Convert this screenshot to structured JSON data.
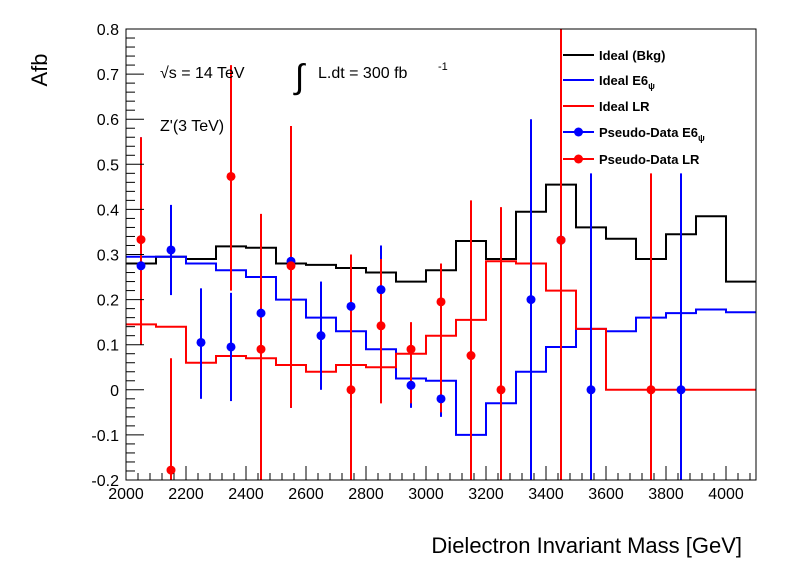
{
  "chart_data": {
    "type": "line",
    "xlabel": "Dielectron Invariant Mass [GeV]",
    "ylabel": "Afb",
    "xlim": [
      2000,
      4100
    ],
    "ylim": [
      -0.2,
      0.8
    ],
    "x_ticks": [
      2000,
      2200,
      2400,
      2600,
      2800,
      3000,
      3200,
      3400,
      3600,
      3800,
      4000
    ],
    "x_tick_labels": [
      "2000",
      "2200",
      "2400",
      "2600",
      "2800",
      "3000",
      "3200",
      "3400",
      "3600",
      "3800",
      "4000"
    ],
    "y_ticks": [
      -0.2,
      -0.1,
      0,
      0.1,
      0.2,
      0.3,
      0.4,
      0.5,
      0.6,
      0.7,
      0.8
    ],
    "y_tick_labels": [
      "-0.2",
      "-0.1",
      "0",
      "0.1",
      "0.2",
      "0.3",
      "0.4",
      "0.5",
      "0.6",
      "0.7",
      "0.8"
    ],
    "annotations": {
      "sqrt_s": "√s = 14 TeV",
      "lumi_integral": "∫",
      "lumi_text": "L.dt = 300 fb",
      "lumi_exp": "-1",
      "model": "Z'(3 TeV)"
    },
    "legend_position": "top-right",
    "legend": [
      {
        "label": "Ideal (Bkg)",
        "sub": "",
        "style": "line",
        "color": "#000000"
      },
      {
        "label": "Ideal E6",
        "sub": "ψ",
        "style": "line",
        "color": "#0000ff"
      },
      {
        "label": "Ideal LR",
        "sub": "",
        "style": "line",
        "color": "#ff0000"
      },
      {
        "label": "Pseudo-Data E6",
        "sub": "ψ",
        "style": "marker",
        "color": "#0000ff"
      },
      {
        "label": "Pseudo-Data LR",
        "sub": "",
        "style": "marker",
        "color": "#ff0000"
      }
    ],
    "bin_edges": [
      2000,
      2100,
      2200,
      2300,
      2400,
      2500,
      2600,
      2700,
      2800,
      2900,
      3000,
      3100,
      3200,
      3300,
      3400,
      3500,
      3600,
      3700,
      3800,
      3900,
      4000,
      4100
    ],
    "step_series": [
      {
        "color": "#000000",
        "values": [
          0.28,
          0.295,
          0.29,
          0.318,
          0.315,
          0.28,
          0.277,
          0.27,
          0.26,
          0.24,
          0.265,
          0.33,
          0.29,
          0.395,
          0.455,
          0.36,
          0.335,
          0.29,
          0.345,
          0.385,
          0.24
        ]
      },
      {
        "color": "#0000ff",
        "values": [
          0.295,
          0.295,
          0.28,
          0.265,
          0.25,
          0.2,
          0.16,
          0.13,
          0.09,
          0.025,
          0.02,
          -0.1,
          -0.03,
          0.04,
          0.095,
          0.135,
          0.13,
          0.16,
          0.17,
          0.178,
          0.172
        ]
      },
      {
        "color": "#ff0000",
        "values": [
          0.145,
          0.14,
          0.06,
          0.075,
          0.07,
          0.055,
          0.04,
          0.055,
          0.05,
          0.08,
          0.12,
          0.155,
          0.285,
          0.28,
          0.22,
          0.135,
          0.0,
          0.0,
          0.0,
          0.0,
          0.0
        ]
      }
    ],
    "points": [
      {
        "color": "#0000ff",
        "x": [
          2050,
          2150,
          2250,
          2350,
          2450,
          2550,
          2650,
          2750,
          2850,
          2950,
          3050,
          3350,
          3450,
          3550,
          3850
        ],
        "y": [
          0.275,
          0.31,
          0.105,
          0.095,
          0.17,
          0.285,
          0.12,
          0.185,
          0.222,
          0.01,
          -0.02,
          0.2,
          0.332,
          0.0,
          0.0
        ],
        "ylo": [
          0.1,
          0.21,
          -0.02,
          -0.025,
          0.02,
          -0.04,
          0.0,
          0.03,
          0.06,
          -0.04,
          -0.06,
          -0.2,
          0.07,
          -0.2,
          -0.2
        ],
        "yhi": [
          0.56,
          0.41,
          0.225,
          0.215,
          0.28,
          0.54,
          0.24,
          0.3,
          0.32,
          0.055,
          0.03,
          0.6,
          0.65,
          0.48,
          0.48
        ]
      },
      {
        "color": "#ff0000",
        "x": [
          2050,
          2150,
          2350,
          2450,
          2550,
          2750,
          2850,
          2950,
          3050,
          3150,
          3250,
          3450,
          3750
        ],
        "y": [
          0.333,
          -0.178,
          0.473,
          0.09,
          0.275,
          0.0,
          0.142,
          0.09,
          0.195,
          0.076,
          0.0,
          0.332,
          0.0
        ],
        "ylo": [
          0.1,
          -0.2,
          0.22,
          -0.2,
          -0.04,
          -0.2,
          -0.03,
          -0.03,
          -0.05,
          -0.2,
          -0.2,
          -0.2,
          -0.2
        ],
        "yhi": [
          0.56,
          0.07,
          0.72,
          0.39,
          0.585,
          0.3,
          0.29,
          0.15,
          0.28,
          0.42,
          0.405,
          0.8,
          0.48
        ]
      }
    ]
  }
}
